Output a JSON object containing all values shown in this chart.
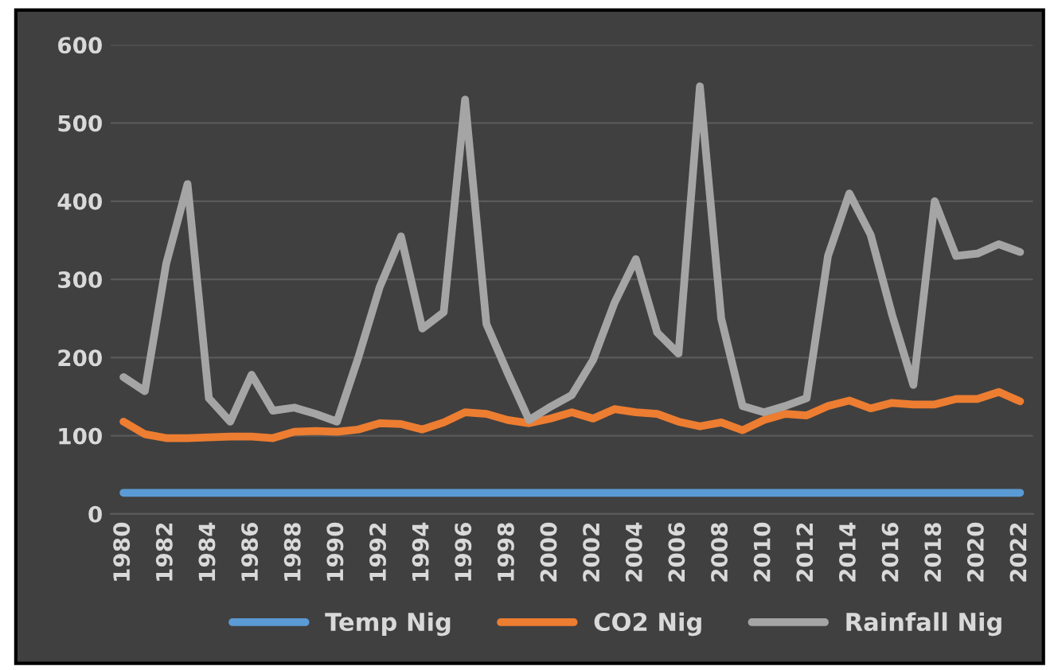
{
  "chart_data": {
    "type": "line",
    "categories": [
      "1980",
      null,
      "1982",
      null,
      "1984",
      null,
      "1986",
      null,
      "1988",
      null,
      "1990",
      null,
      "1992",
      null,
      "1994",
      null,
      "1996",
      null,
      "1998",
      null,
      "2000",
      null,
      "2002",
      null,
      "2004",
      null,
      "2006",
      null,
      "2008",
      null,
      "2010",
      null,
      "2012",
      null,
      "2014",
      null,
      "2016",
      null,
      "2018",
      null,
      "2020",
      null,
      "2022"
    ],
    "series": [
      {
        "name": "Temp Nig",
        "color": "#5b9bd5",
        "values": [
          27,
          27,
          27,
          27,
          27,
          27,
          27,
          27,
          27,
          27,
          27,
          27,
          27,
          27,
          27,
          27,
          27,
          27,
          27,
          27,
          27,
          27,
          27,
          27,
          27,
          27,
          27,
          27,
          27,
          27,
          27,
          27,
          27,
          27,
          27,
          27,
          27,
          27,
          27,
          27,
          27,
          27,
          27
        ]
      },
      {
        "name": "CO2 Nig",
        "color": "#ed7d31",
        "values": [
          118,
          102,
          97,
          97,
          98,
          99,
          99,
          97,
          105,
          106,
          105,
          108,
          116,
          115,
          108,
          117,
          130,
          128,
          120,
          116,
          122,
          130,
          122,
          134,
          130,
          128,
          118,
          112,
          117,
          107,
          120,
          128,
          126,
          138,
          145,
          135,
          142,
          140,
          140,
          147,
          147,
          156,
          144
        ]
      },
      {
        "name": "Rainfall Nig",
        "color": "#a5a5a5",
        "values": [
          175,
          157,
          320,
          422,
          148,
          118,
          178,
          132,
          136,
          128,
          118,
          200,
          290,
          355,
          237,
          258,
          530,
          243,
          180,
          120,
          137,
          152,
          197,
          270,
          326,
          232,
          205,
          547,
          250,
          138,
          130,
          138,
          148,
          330,
          410,
          357,
          255,
          165,
          400,
          330,
          333,
          345,
          335
        ]
      }
    ],
    "ylim": [
      0,
      600
    ],
    "yticks": [
      0,
      100,
      200,
      300,
      400,
      500,
      600
    ],
    "grid": "y",
    "legend": "bottom",
    "marker": "none",
    "line_style": "solid"
  }
}
